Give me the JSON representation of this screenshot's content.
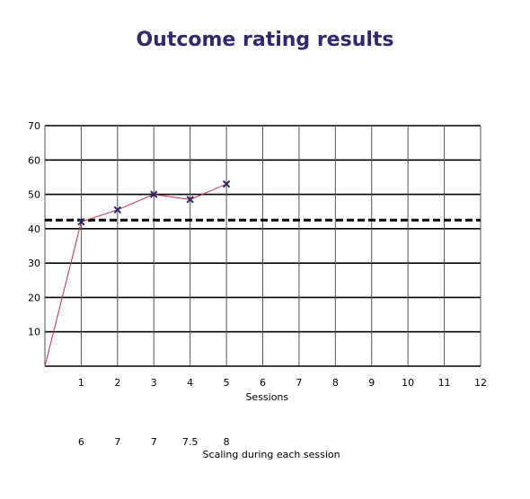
{
  "chart_data": {
    "type": "line",
    "title": "Outcome rating results",
    "xlabel": "Sessions",
    "ylabel": "",
    "xlim": [
      0,
      12
    ],
    "ylim": [
      0,
      70
    ],
    "x_ticks": [
      1,
      2,
      3,
      4,
      5,
      6,
      7,
      8,
      9,
      10,
      11,
      12
    ],
    "y_ticks": [
      10,
      20,
      30,
      40,
      50,
      60,
      70
    ],
    "grid": true,
    "series": [
      {
        "x": [
          0,
          1,
          2,
          3,
          4,
          5
        ],
        "values": [
          0,
          42,
          45.5,
          50,
          48.5,
          53
        ],
        "markers": [
          false,
          true,
          true,
          true,
          true,
          true
        ],
        "color": "#c0304a",
        "marker_color": "#2e2a6b"
      }
    ],
    "reference_line": {
      "y": 42.5,
      "style": "dashed"
    },
    "secondary_row": {
      "label": "Scaling during each session",
      "x": [
        1,
        2,
        3,
        4,
        5
      ],
      "values": [
        "6",
        "7",
        "7",
        "7.5",
        "8"
      ]
    }
  }
}
